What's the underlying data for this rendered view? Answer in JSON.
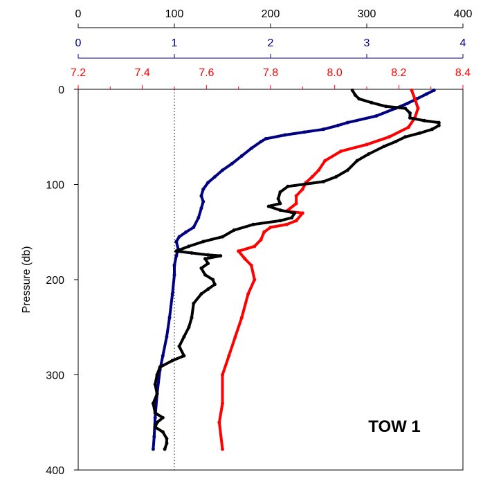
{
  "chart_data": {
    "type": "line",
    "title": "",
    "annotation": "TOW 1",
    "ylabel": "Pressure (db)",
    "ylim": [
      0,
      400
    ],
    "y_reversed": true,
    "y_ticks": [
      0,
      100,
      200,
      300,
      400
    ],
    "grid": false,
    "axes": [
      {
        "id": "black",
        "color": "#000000",
        "min": 0,
        "max": 400,
        "ticks": [
          0,
          100,
          200,
          300,
          400
        ],
        "tick_labels": [
          "0",
          "100",
          "200",
          "300",
          "400"
        ],
        "minor_ticks": []
      },
      {
        "id": "blue",
        "color": "#000080",
        "min": 0,
        "max": 4,
        "ticks": [
          0,
          1,
          2,
          3,
          4
        ],
        "tick_labels": [
          "0",
          "1",
          "2",
          "3",
          "4"
        ],
        "minor_ticks": []
      },
      {
        "id": "red",
        "color": "#ff0000",
        "min": 7.2,
        "max": 8.4,
        "ticks": [
          7.2,
          7.4,
          7.6,
          7.8,
          8.0,
          8.2,
          8.4
        ],
        "tick_labels": [
          "7.2",
          "7.4",
          "7.6",
          "7.8",
          "8.0",
          "8.2",
          "8.4"
        ],
        "minor_ticks": [
          7.3,
          7.5,
          7.7,
          7.9,
          8.1,
          8.3
        ]
      }
    ],
    "reference_line": {
      "axis": "blue",
      "value": 1,
      "style": "dotted"
    },
    "series": [
      {
        "axis": "blue",
        "color": "#000080",
        "points": [
          [
            3.7,
            1
          ],
          [
            3.62,
            5
          ],
          [
            3.52,
            10
          ],
          [
            3.42,
            15
          ],
          [
            3.3,
            20
          ],
          [
            3.1,
            28
          ],
          [
            2.8,
            35
          ],
          [
            2.7,
            38
          ],
          [
            2.55,
            42
          ],
          [
            2.35,
            45
          ],
          [
            2.15,
            48
          ],
          [
            1.95,
            52
          ],
          [
            1.9,
            55
          ],
          [
            1.8,
            62
          ],
          [
            1.7,
            70
          ],
          [
            1.6,
            78
          ],
          [
            1.5,
            85
          ],
          [
            1.42,
            92
          ],
          [
            1.35,
            98
          ],
          [
            1.3,
            105
          ],
          [
            1.28,
            112
          ],
          [
            1.3,
            118
          ],
          [
            1.28,
            125
          ],
          [
            1.25,
            135
          ],
          [
            1.2,
            145
          ],
          [
            1.12,
            150
          ],
          [
            1.05,
            155
          ],
          [
            1.02,
            160
          ],
          [
            1.04,
            168
          ],
          [
            1.02,
            175
          ],
          [
            1.0,
            185
          ],
          [
            1.0,
            195
          ],
          [
            0.98,
            215
          ],
          [
            0.95,
            240
          ],
          [
            0.92,
            260
          ],
          [
            0.88,
            280
          ],
          [
            0.85,
            295
          ],
          [
            0.82,
            320
          ],
          [
            0.8,
            345
          ],
          [
            0.79,
            365
          ],
          [
            0.78,
            378
          ]
        ]
      },
      {
        "axis": "red",
        "color": "#ff0000",
        "points": [
          [
            8.24,
            1
          ],
          [
            8.25,
            10
          ],
          [
            8.26,
            20
          ],
          [
            8.25,
            30
          ],
          [
            8.23,
            40
          ],
          [
            8.17,
            50
          ],
          [
            8.1,
            58
          ],
          [
            8.02,
            65
          ],
          [
            7.97,
            75
          ],
          [
            7.95,
            85
          ],
          [
            7.93,
            92
          ],
          [
            7.91,
            98
          ],
          [
            7.9,
            105
          ],
          [
            7.88,
            112
          ],
          [
            7.88,
            120
          ],
          [
            7.85,
            128
          ],
          [
            7.9,
            130
          ],
          [
            7.88,
            138
          ],
          [
            7.85,
            142
          ],
          [
            7.8,
            145
          ],
          [
            7.78,
            150
          ],
          [
            7.77,
            158
          ],
          [
            7.75,
            165
          ],
          [
            7.7,
            170
          ],
          [
            7.72,
            178
          ],
          [
            7.74,
            185
          ],
          [
            7.75,
            200
          ],
          [
            7.73,
            215
          ],
          [
            7.71,
            240
          ],
          [
            7.69,
            260
          ],
          [
            7.67,
            280
          ],
          [
            7.65,
            300
          ],
          [
            7.65,
            330
          ],
          [
            7.64,
            350
          ],
          [
            7.65,
            378
          ]
        ]
      },
      {
        "axis": "black",
        "color": "#000000",
        "points": [
          [
            285,
            1
          ],
          [
            288,
            6
          ],
          [
            292,
            10
          ],
          [
            305,
            14
          ],
          [
            320,
            18
          ],
          [
            340,
            20
          ],
          [
            345,
            25
          ],
          [
            345,
            30
          ],
          [
            360,
            33
          ],
          [
            375,
            35
          ],
          [
            375,
            38
          ],
          [
            368,
            42
          ],
          [
            355,
            46
          ],
          [
            340,
            50
          ],
          [
            330,
            55
          ],
          [
            318,
            60
          ],
          [
            302,
            68
          ],
          [
            290,
            75
          ],
          [
            280,
            85
          ],
          [
            268,
            92
          ],
          [
            255,
            97
          ],
          [
            218,
            102
          ],
          [
            210,
            108
          ],
          [
            208,
            115
          ],
          [
            210,
            120
          ],
          [
            198,
            123
          ],
          [
            210,
            127
          ],
          [
            225,
            130
          ],
          [
            222,
            135
          ],
          [
            210,
            138
          ],
          [
            182,
            142
          ],
          [
            162,
            148
          ],
          [
            150,
            155
          ],
          [
            130,
            160
          ],
          [
            115,
            165
          ],
          [
            102,
            170
          ],
          [
            118,
            172
          ],
          [
            135,
            174
          ],
          [
            148,
            175
          ],
          [
            132,
            178
          ],
          [
            135,
            183
          ],
          [
            128,
            188
          ],
          [
            132,
            195
          ],
          [
            140,
            200
          ],
          [
            142,
            205
          ],
          [
            135,
            210
          ],
          [
            128,
            215
          ],
          [
            120,
            225
          ],
          [
            118,
            240
          ],
          [
            115,
            250
          ],
          [
            110,
            260
          ],
          [
            105,
            270
          ],
          [
            110,
            280
          ],
          [
            98,
            285
          ],
          [
            85,
            292
          ],
          [
            82,
            300
          ],
          [
            80,
            310
          ],
          [
            82,
            320
          ],
          [
            78,
            330
          ],
          [
            80,
            340
          ],
          [
            88,
            345
          ],
          [
            82,
            350
          ],
          [
            80,
            355
          ],
          [
            88,
            360
          ],
          [
            92,
            367
          ],
          [
            92,
            372
          ],
          [
            90,
            378
          ]
        ]
      }
    ]
  }
}
